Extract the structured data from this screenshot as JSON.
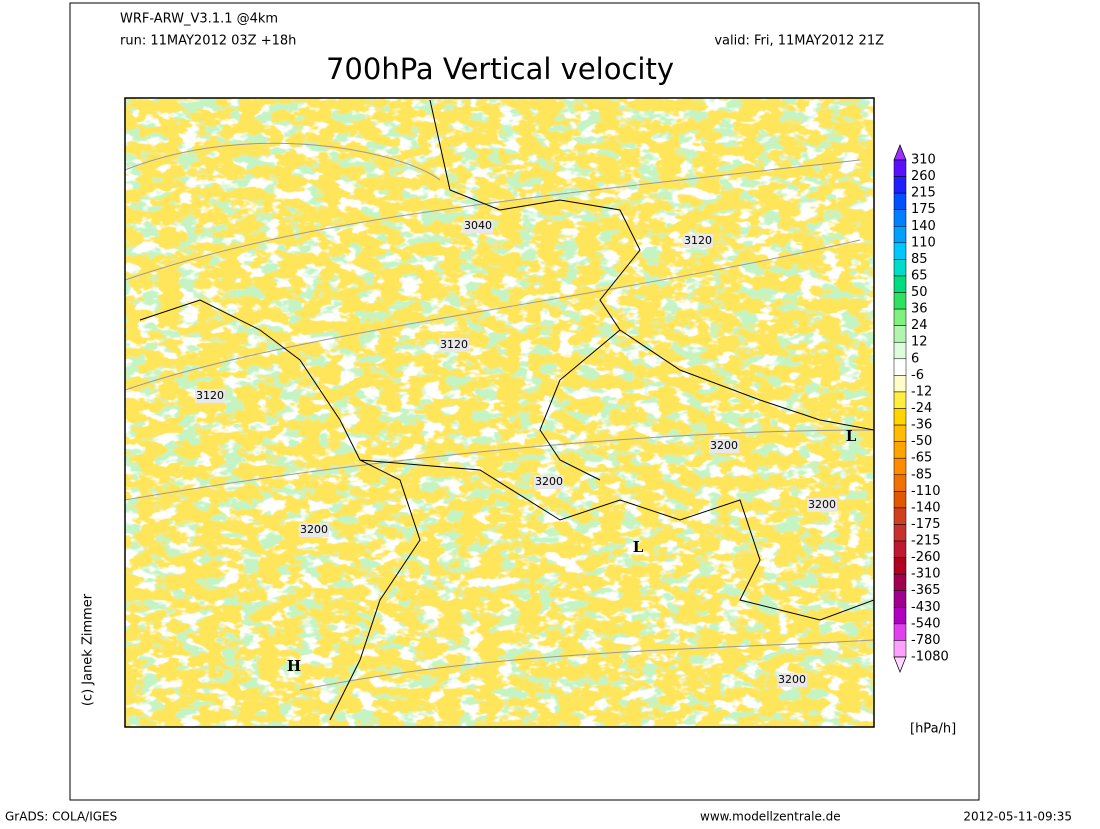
{
  "header": {
    "model": "WRF-ARW_V3.1.1 @4km",
    "run": "run: 11MAY2012 03Z +18h",
    "valid": "valid: Fri, 11MAY2012 21Z"
  },
  "title": "700hPa Vertical velocity",
  "map": {
    "contour_labels": [
      "3040",
      "3120",
      "3120",
      "3120",
      "3200",
      "3200",
      "3200",
      "3200",
      "3200"
    ],
    "pressure_centers": [
      "H",
      "L",
      "L"
    ]
  },
  "colorbar": {
    "ticks": [
      "310",
      "260",
      "215",
      "175",
      "140",
      "110",
      "85",
      "65",
      "50",
      "36",
      "24",
      "12",
      "6",
      "-6",
      "-12",
      "-24",
      "-36",
      "-50",
      "-65",
      "-85",
      "-110",
      "-140",
      "-175",
      "-215",
      "-260",
      "-310",
      "-365",
      "-430",
      "-540",
      "-780",
      "-1080"
    ],
    "colors": [
      "#9a30ff",
      "#5a10ff",
      "#2020ff",
      "#0050ff",
      "#0080ff",
      "#00a0ff",
      "#00c8ff",
      "#00dcc8",
      "#00dc80",
      "#30e060",
      "#80f080",
      "#b0f4b0",
      "#dcfcdc",
      "#ffffff",
      "#fffcc8",
      "#ffee40",
      "#ffd400",
      "#ffbc00",
      "#ffa400",
      "#ff8c00",
      "#f07000",
      "#e05800",
      "#d04020",
      "#c83030",
      "#c01830",
      "#b00020",
      "#a00050",
      "#a00090",
      "#b000c0",
      "#e040f0",
      "#ffa0ff",
      "#ffd8ff"
    ],
    "unit": "[hPa/h]"
  },
  "credit": "(c) Janek Zimmer",
  "footer": {
    "left": "GrADS: COLA/IGES",
    "center": "www.modellzentrale.de",
    "right": "2012-05-11-09:35"
  }
}
